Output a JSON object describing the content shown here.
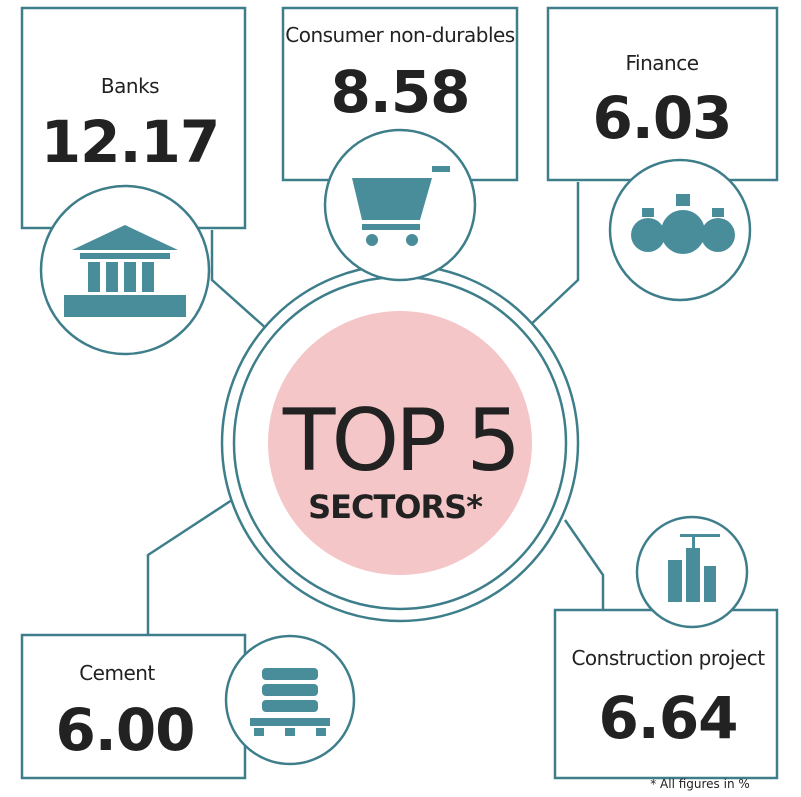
{
  "title": "TOP 5",
  "subtitle": "SECTORS*",
  "sectors": [
    {
      "name": "Banks",
      "value": "12.17"
    },
    {
      "name": "Consumer non-durables",
      "value": "8.58"
    },
    {
      "name": "Finance",
      "value": "6.03"
    },
    {
      "name": "Cement",
      "value": "6.00"
    },
    {
      "name": "Construction project",
      "value": "6.64"
    }
  ],
  "footnote": "* All figures in %"
}
